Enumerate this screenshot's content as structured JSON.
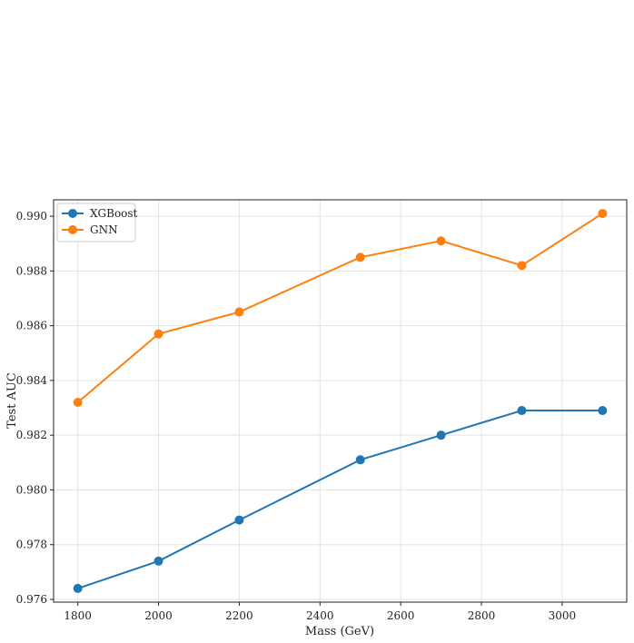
{
  "chart_data": {
    "type": "line",
    "title": "",
    "xlabel": "Mass (GeV)",
    "ylabel": "Test AUC",
    "x": [
      1800,
      2000,
      2200,
      2500,
      2700,
      2900,
      3100
    ],
    "series": [
      {
        "name": "XGBoost",
        "color": "#1f77b4",
        "values": [
          0.9764,
          0.9774,
          0.9789,
          0.9811,
          0.982,
          0.9829,
          0.9829
        ]
      },
      {
        "name": "GNN",
        "color": "#ff7f0e",
        "values": [
          0.9832,
          0.9857,
          0.9865,
          0.9885,
          0.9891,
          0.9882,
          0.9901
        ]
      }
    ],
    "xlim": [
      1740,
      3160
    ],
    "ylim": [
      0.9759,
      0.9906
    ],
    "xticks": [
      1800,
      2000,
      2200,
      2400,
      2600,
      2800,
      3000
    ],
    "xtick_labels": [
      "1800",
      "2000",
      "2200",
      "2400",
      "2600",
      "2800",
      "3000"
    ],
    "yticks": [
      0.976,
      0.978,
      0.98,
      0.982,
      0.984,
      0.986,
      0.988,
      0.99
    ],
    "ytick_labels": [
      "0.976",
      "0.978",
      "0.980",
      "0.982",
      "0.984",
      "0.986",
      "0.988",
      "0.990"
    ],
    "grid": true,
    "legend_position": "top-left"
  }
}
